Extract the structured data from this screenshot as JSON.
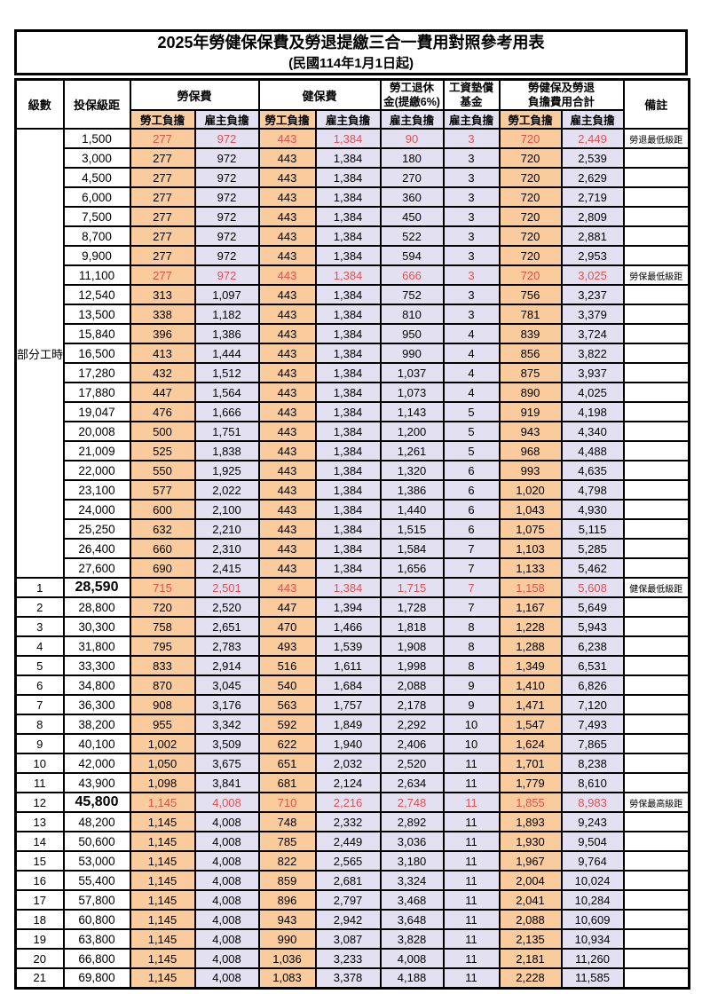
{
  "colors": {
    "employee_bg": "#F9CB9D",
    "employer_bg": "#E3E0F2",
    "highlight_red": "#E05252",
    "grid": "#000000"
  },
  "table": {
    "title": "2025年勞健保保費及勞退提繳三合一費用對照參考用表",
    "subtitle": "(民國114年1月1日起)",
    "header": {
      "col_level": "級數",
      "col_salary": "投保級距",
      "grp_labor": "勞保費",
      "grp_health": "健保費",
      "grp_pension": [
        "勞工退休",
        "金(提繳6%)"
      ],
      "grp_wage_fund": [
        "工資墊償",
        "基金"
      ],
      "grp_total": [
        "勞健保及勞退",
        "負擔費用合計"
      ],
      "sub_employee": "勞工負擔",
      "sub_employer": "雇主負擔",
      "col_note": "備註"
    },
    "part_time_label": "部分工時",
    "part_time_rowspan": 23,
    "value_columns": [
      "勞保費-勞工負擔",
      "勞保費-雇主負擔",
      "健保費-勞工負擔",
      "健保費-雇主負擔",
      "勞工退休金-雇主負擔",
      "工資墊償基金-雇主負擔",
      "合計-勞工負擔",
      "合計-雇主負擔"
    ],
    "rows": [
      {
        "level": null,
        "salary": "1,500",
        "v": [
          "277",
          "972",
          "443",
          "1,384",
          "90",
          "3",
          "720",
          "2,449"
        ],
        "note": "勞退最低級距",
        "red": true
      },
      {
        "level": null,
        "salary": "3,000",
        "v": [
          "277",
          "972",
          "443",
          "1,384",
          "180",
          "3",
          "720",
          "2,539"
        ],
        "note": ""
      },
      {
        "level": null,
        "salary": "4,500",
        "v": [
          "277",
          "972",
          "443",
          "1,384",
          "270",
          "3",
          "720",
          "2,629"
        ],
        "note": ""
      },
      {
        "level": null,
        "salary": "6,000",
        "v": [
          "277",
          "972",
          "443",
          "1,384",
          "360",
          "3",
          "720",
          "2,719"
        ],
        "note": ""
      },
      {
        "level": null,
        "salary": "7,500",
        "v": [
          "277",
          "972",
          "443",
          "1,384",
          "450",
          "3",
          "720",
          "2,809"
        ],
        "note": ""
      },
      {
        "level": null,
        "salary": "8,700",
        "v": [
          "277",
          "972",
          "443",
          "1,384",
          "522",
          "3",
          "720",
          "2,881"
        ],
        "note": ""
      },
      {
        "level": null,
        "salary": "9,900",
        "v": [
          "277",
          "972",
          "443",
          "1,384",
          "594",
          "3",
          "720",
          "2,953"
        ],
        "note": ""
      },
      {
        "level": null,
        "salary": "11,100",
        "v": [
          "277",
          "972",
          "443",
          "1,384",
          "666",
          "3",
          "720",
          "3,025"
        ],
        "note": "勞保最低級距",
        "red": true
      },
      {
        "level": null,
        "salary": "12,540",
        "v": [
          "313",
          "1,097",
          "443",
          "1,384",
          "752",
          "3",
          "756",
          "3,237"
        ],
        "note": ""
      },
      {
        "level": null,
        "salary": "13,500",
        "v": [
          "338",
          "1,182",
          "443",
          "1,384",
          "810",
          "3",
          "781",
          "3,379"
        ],
        "note": ""
      },
      {
        "level": null,
        "salary": "15,840",
        "v": [
          "396",
          "1,386",
          "443",
          "1,384",
          "950",
          "4",
          "839",
          "3,724"
        ],
        "note": ""
      },
      {
        "level": null,
        "salary": "16,500",
        "v": [
          "413",
          "1,444",
          "443",
          "1,384",
          "990",
          "4",
          "856",
          "3,822"
        ],
        "note": ""
      },
      {
        "level": null,
        "salary": "17,280",
        "v": [
          "432",
          "1,512",
          "443",
          "1,384",
          "1,037",
          "4",
          "875",
          "3,937"
        ],
        "note": ""
      },
      {
        "level": null,
        "salary": "17,880",
        "v": [
          "447",
          "1,564",
          "443",
          "1,384",
          "1,073",
          "4",
          "890",
          "4,025"
        ],
        "note": ""
      },
      {
        "level": null,
        "salary": "19,047",
        "v": [
          "476",
          "1,666",
          "443",
          "1,384",
          "1,143",
          "5",
          "919",
          "4,198"
        ],
        "note": ""
      },
      {
        "level": null,
        "salary": "20,008",
        "v": [
          "500",
          "1,751",
          "443",
          "1,384",
          "1,200",
          "5",
          "943",
          "4,340"
        ],
        "note": ""
      },
      {
        "level": null,
        "salary": "21,009",
        "v": [
          "525",
          "1,838",
          "443",
          "1,384",
          "1,261",
          "5",
          "968",
          "4,488"
        ],
        "note": ""
      },
      {
        "level": null,
        "salary": "22,000",
        "v": [
          "550",
          "1,925",
          "443",
          "1,384",
          "1,320",
          "6",
          "993",
          "4,635"
        ],
        "note": ""
      },
      {
        "level": null,
        "salary": "23,100",
        "v": [
          "577",
          "2,022",
          "443",
          "1,384",
          "1,386",
          "6",
          "1,020",
          "4,798"
        ],
        "note": ""
      },
      {
        "level": null,
        "salary": "24,000",
        "v": [
          "600",
          "2,100",
          "443",
          "1,384",
          "1,440",
          "6",
          "1,043",
          "4,930"
        ],
        "note": ""
      },
      {
        "level": null,
        "salary": "25,250",
        "v": [
          "632",
          "2,210",
          "443",
          "1,384",
          "1,515",
          "6",
          "1,075",
          "5,115"
        ],
        "note": ""
      },
      {
        "level": null,
        "salary": "26,400",
        "v": [
          "660",
          "2,310",
          "443",
          "1,384",
          "1,584",
          "7",
          "1,103",
          "5,285"
        ],
        "note": ""
      },
      {
        "level": null,
        "salary": "27,600",
        "v": [
          "690",
          "2,415",
          "443",
          "1,384",
          "1,656",
          "7",
          "1,133",
          "5,462"
        ],
        "note": ""
      },
      {
        "level": "1",
        "salary": "28,590",
        "v": [
          "715",
          "2,501",
          "443",
          "1,384",
          "1,715",
          "7",
          "1,158",
          "5,608"
        ],
        "note": "健保最低級距",
        "red": true,
        "em": true
      },
      {
        "level": "2",
        "salary": "28,800",
        "v": [
          "720",
          "2,520",
          "447",
          "1,394",
          "1,728",
          "7",
          "1,167",
          "5,649"
        ],
        "note": ""
      },
      {
        "level": "3",
        "salary": "30,300",
        "v": [
          "758",
          "2,651",
          "470",
          "1,466",
          "1,818",
          "8",
          "1,228",
          "5,943"
        ],
        "note": ""
      },
      {
        "level": "4",
        "salary": "31,800",
        "v": [
          "795",
          "2,783",
          "493",
          "1,539",
          "1,908",
          "8",
          "1,288",
          "6,238"
        ],
        "note": ""
      },
      {
        "level": "5",
        "salary": "33,300",
        "v": [
          "833",
          "2,914",
          "516",
          "1,611",
          "1,998",
          "8",
          "1,349",
          "6,531"
        ],
        "note": ""
      },
      {
        "level": "6",
        "salary": "34,800",
        "v": [
          "870",
          "3,045",
          "540",
          "1,684",
          "2,088",
          "9",
          "1,410",
          "6,826"
        ],
        "note": ""
      },
      {
        "level": "7",
        "salary": "36,300",
        "v": [
          "908",
          "3,176",
          "563",
          "1,757",
          "2,178",
          "9",
          "1,471",
          "7,120"
        ],
        "note": ""
      },
      {
        "level": "8",
        "salary": "38,200",
        "v": [
          "955",
          "3,342",
          "592",
          "1,849",
          "2,292",
          "10",
          "1,547",
          "7,493"
        ],
        "note": ""
      },
      {
        "level": "9",
        "salary": "40,100",
        "v": [
          "1,002",
          "3,509",
          "622",
          "1,940",
          "2,406",
          "10",
          "1,624",
          "7,865"
        ],
        "note": ""
      },
      {
        "level": "10",
        "salary": "42,000",
        "v": [
          "1,050",
          "3,675",
          "651",
          "2,032",
          "2,520",
          "11",
          "1,701",
          "8,238"
        ],
        "note": ""
      },
      {
        "level": "11",
        "salary": "43,900",
        "v": [
          "1,098",
          "3,841",
          "681",
          "2,124",
          "2,634",
          "11",
          "1,779",
          "8,610"
        ],
        "note": ""
      },
      {
        "level": "12",
        "salary": "45,800",
        "v": [
          "1,145",
          "4,008",
          "710",
          "2,216",
          "2,748",
          "11",
          "1,855",
          "8,983"
        ],
        "note": "勞保最高級距",
        "red": true,
        "em": true
      },
      {
        "level": "13",
        "salary": "48,200",
        "v": [
          "1,145",
          "4,008",
          "748",
          "2,332",
          "2,892",
          "11",
          "1,893",
          "9,243"
        ],
        "note": ""
      },
      {
        "level": "14",
        "salary": "50,600",
        "v": [
          "1,145",
          "4,008",
          "785",
          "2,449",
          "3,036",
          "11",
          "1,930",
          "9,504"
        ],
        "note": ""
      },
      {
        "level": "15",
        "salary": "53,000",
        "v": [
          "1,145",
          "4,008",
          "822",
          "2,565",
          "3,180",
          "11",
          "1,967",
          "9,764"
        ],
        "note": ""
      },
      {
        "level": "16",
        "salary": "55,400",
        "v": [
          "1,145",
          "4,008",
          "859",
          "2,681",
          "3,324",
          "11",
          "2,004",
          "10,024"
        ],
        "note": ""
      },
      {
        "level": "17",
        "salary": "57,800",
        "v": [
          "1,145",
          "4,008",
          "896",
          "2,797",
          "3,468",
          "11",
          "2,041",
          "10,284"
        ],
        "note": ""
      },
      {
        "level": "18",
        "salary": "60,800",
        "v": [
          "1,145",
          "4,008",
          "943",
          "2,942",
          "3,648",
          "11",
          "2,088",
          "10,609"
        ],
        "note": ""
      },
      {
        "level": "19",
        "salary": "63,800",
        "v": [
          "1,145",
          "4,008",
          "990",
          "3,087",
          "3,828",
          "11",
          "2,135",
          "10,934"
        ],
        "note": ""
      },
      {
        "level": "20",
        "salary": "66,800",
        "v": [
          "1,145",
          "4,008",
          "1,036",
          "3,233",
          "4,008",
          "11",
          "2,181",
          "11,260"
        ],
        "note": ""
      },
      {
        "level": "21",
        "salary": "69,800",
        "v": [
          "1,145",
          "4,008",
          "1,083",
          "3,378",
          "4,188",
          "11",
          "2,228",
          "11,585"
        ],
        "note": ""
      }
    ]
  }
}
